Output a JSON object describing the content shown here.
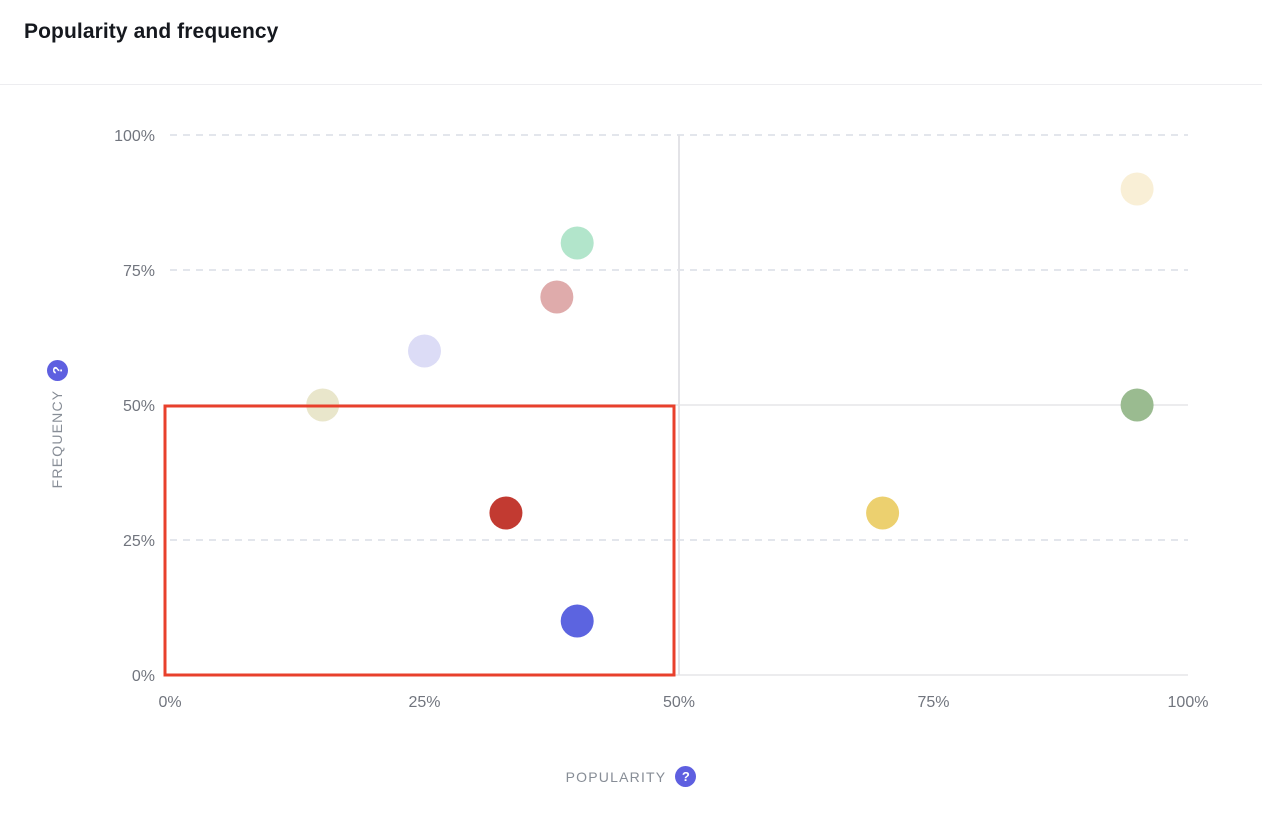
{
  "header": {
    "title": "Popularity and frequency"
  },
  "axes": {
    "x_label": "POPULARITY",
    "y_label": "FREQUENCY",
    "help_icon": "?"
  },
  "colors": {
    "accent_purple": "#5e5fe0",
    "highlight_red": "#e8402c",
    "grid_dashed": "#dfe3e9",
    "grid_solid": "#e5e5e9",
    "tick_text": "#71757e",
    "axis_label_text": "#878d96",
    "title_text": "#15181e"
  },
  "chart_data": {
    "type": "scatter",
    "title": "Popularity and frequency",
    "xlabel": "POPULARITY",
    "ylabel": "FREQUENCY",
    "xlim": [
      0,
      100
    ],
    "ylim": [
      0,
      100
    ],
    "x_ticks": [
      "0%",
      "25%",
      "50%",
      "75%",
      "100%"
    ],
    "x_tick_values": [
      0,
      25,
      50,
      75,
      100
    ],
    "y_ticks": [
      "0%",
      "25%",
      "50%",
      "75%",
      "100%"
    ],
    "y_tick_values": [
      0,
      25,
      50,
      75,
      100
    ],
    "grid": "dashed horizontal gridlines at 25/75/100, solid lines at 0 and 50, solid vertical divider at x=50",
    "legend": "none",
    "quadrant_split": {
      "x": 50,
      "y": 50
    },
    "highlight_region": {
      "x0": 0,
      "y0": 0,
      "x1": 50,
      "y1": 50,
      "color": "#e8402c"
    },
    "points": [
      {
        "name": "beige",
        "x": 15,
        "y": 50,
        "color": "#e9e6cb"
      },
      {
        "name": "lavender",
        "x": 25,
        "y": 60,
        "color": "#dcdcf6"
      },
      {
        "name": "rose",
        "x": 38,
        "y": 70,
        "color": "#dfabab"
      },
      {
        "name": "mint",
        "x": 40,
        "y": 80,
        "color": "#b2e5cb"
      },
      {
        "name": "red",
        "x": 33,
        "y": 30,
        "color": "#c23a31"
      },
      {
        "name": "indigo",
        "x": 40,
        "y": 10,
        "color": "#5c64e0"
      },
      {
        "name": "yellow",
        "x": 70,
        "y": 30,
        "color": "#ecd06f"
      },
      {
        "name": "cream",
        "x": 95,
        "y": 90,
        "color": "#f9efd6"
      },
      {
        "name": "green",
        "x": 95,
        "y": 50,
        "color": "#9abb90"
      }
    ]
  }
}
